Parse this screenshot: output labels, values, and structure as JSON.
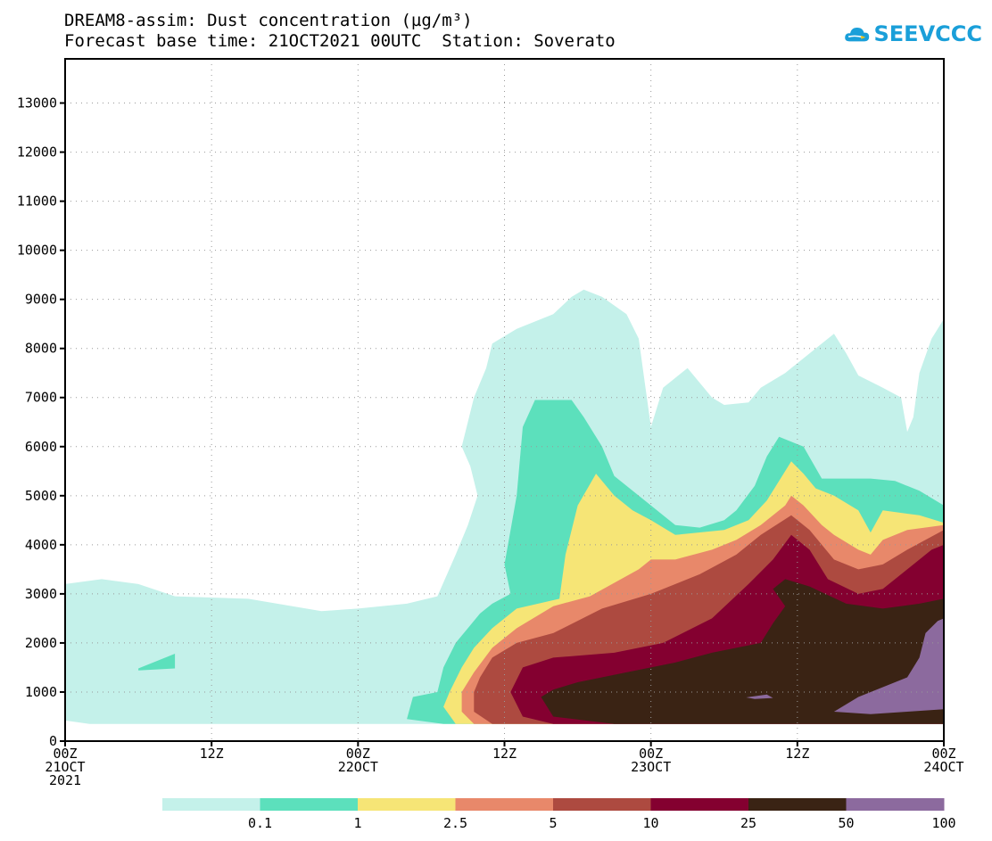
{
  "title": {
    "line1": "DREAM8-assim: Dust concentration (µg/m³)",
    "line2": "Forecast base time: 21OCT2021 00UTC  Station: Soverato"
  },
  "logo": {
    "text": "SEEVCCC",
    "icon": "cloud-icon",
    "color": "#1a9fd9"
  },
  "chart_data": {
    "type": "heatmap",
    "subtype": "filled-contour",
    "x_axis": {
      "unit": "hours since 21OCT2021 00UTC",
      "range": [
        0,
        72
      ],
      "ticks": [
        {
          "x": 0,
          "label": [
            "00Z",
            "21OCT",
            "2021"
          ]
        },
        {
          "x": 12,
          "label": [
            "12Z"
          ]
        },
        {
          "x": 24,
          "label": [
            "00Z",
            "22OCT"
          ]
        },
        {
          "x": 36,
          "label": [
            "12Z"
          ]
        },
        {
          "x": 48,
          "label": [
            "00Z",
            "23OCT"
          ]
        },
        {
          "x": 60,
          "label": [
            "12Z"
          ]
        },
        {
          "x": 72,
          "label": [
            "00Z",
            "24OCT"
          ]
        }
      ]
    },
    "y_axis": {
      "unit": "m",
      "range": [
        0,
        13900
      ],
      "ticks": [
        0,
        1000,
        2000,
        3000,
        4000,
        5000,
        6000,
        7000,
        8000,
        9000,
        10000,
        11000,
        12000,
        13000
      ]
    },
    "grid": true,
    "legend": {
      "placement": "bottom",
      "thresholds": [
        "0.1",
        "1",
        "2.5",
        "5",
        "10",
        "25",
        "50",
        "100"
      ],
      "colors": [
        "#c4f1ea",
        "#5ce0bc",
        "#f6e576",
        "#e8886a",
        "#ad4a40",
        "#840030",
        "#3a2314",
        "#8c6a9e"
      ]
    },
    "levels": [
      {
        "threshold": 0.1,
        "color": "#c4f1ea",
        "regions": [
          [
            [
              0,
              3200
            ],
            [
              3,
              3300
            ],
            [
              6,
              3200
            ],
            [
              9,
              2950
            ],
            [
              15,
              2900
            ],
            [
              21,
              2650
            ],
            [
              24,
              2700
            ],
            [
              28,
              2800
            ],
            [
              30.5,
              2950
            ],
            [
              32,
              3800
            ],
            [
              33,
              4400
            ],
            [
              33.8,
              5000
            ],
            [
              33.2,
              5600
            ],
            [
              32.5,
              6000
            ],
            [
              33.5,
              7000
            ],
            [
              34.5,
              7600
            ],
            [
              35,
              8100
            ],
            [
              37,
              8400
            ],
            [
              40,
              8700
            ],
            [
              41.5,
              9050
            ],
            [
              42.5,
              9200
            ],
            [
              44,
              9050
            ],
            [
              46,
              8700
            ],
            [
              47,
              8200
            ],
            [
              47.5,
              7300
            ],
            [
              48,
              6400
            ],
            [
              49,
              7200
            ],
            [
              51,
              7600
            ],
            [
              52,
              7300
            ],
            [
              53,
              7000
            ],
            [
              54,
              6850
            ],
            [
              56,
              6900
            ],
            [
              57,
              7200
            ],
            [
              59,
              7500
            ],
            [
              61,
              7900
            ],
            [
              63,
              8300
            ],
            [
              64,
              7900
            ],
            [
              65,
              7450
            ],
            [
              67,
              7200
            ],
            [
              68.5,
              7000
            ],
            [
              69,
              6300
            ],
            [
              69.5,
              6600
            ],
            [
              70,
              7500
            ],
            [
              71,
              8200
            ],
            [
              72,
              8600
            ],
            [
              72,
              350
            ],
            [
              67,
              350
            ],
            [
              62,
              350
            ],
            [
              56,
              350
            ],
            [
              50,
              350
            ],
            [
              45,
              350
            ],
            [
              40,
              350
            ],
            [
              35,
              350
            ],
            [
              30,
              350
            ],
            [
              25,
              350
            ],
            [
              20,
              350
            ],
            [
              15,
              350
            ],
            [
              10,
              350
            ],
            [
              5,
              350
            ],
            [
              2,
              350
            ],
            [
              0,
              420
            ]
          ]
        ]
      },
      {
        "threshold": 1,
        "color": "#5ce0bc",
        "regions": [
          [
            [
              30.5,
              1000
            ],
            [
              31,
              1500
            ],
            [
              32,
              2000
            ],
            [
              33,
              2300
            ],
            [
              34,
              2600
            ],
            [
              35,
              2800
            ],
            [
              36.5,
              3000
            ],
            [
              36,
              3600
            ],
            [
              37,
              5000
            ],
            [
              37.5,
              6400
            ],
            [
              38.5,
              6950
            ],
            [
              41.5,
              6950
            ],
            [
              42.5,
              6600
            ],
            [
              44,
              6000
            ],
            [
              45,
              5400
            ],
            [
              47,
              5000
            ],
            [
              48,
              4800
            ],
            [
              49,
              4600
            ],
            [
              50,
              4400
            ],
            [
              52,
              4350
            ],
            [
              54,
              4500
            ],
            [
              55,
              4700
            ],
            [
              56.5,
              5200
            ],
            [
              57.5,
              5800
            ],
            [
              58.5,
              6200
            ],
            [
              60.5,
              6000
            ],
            [
              62,
              5350
            ],
            [
              66,
              5350
            ],
            [
              68,
              5300
            ],
            [
              70,
              5100
            ],
            [
              72,
              4800
            ],
            [
              72,
              350
            ],
            [
              31,
              350
            ],
            [
              28,
              450
            ],
            [
              28.5,
              900
            ]
          ],
          [
            [
              6,
              1480
            ],
            [
              9,
              1780
            ],
            [
              9,
              1480
            ],
            [
              6,
              1440
            ]
          ]
        ]
      },
      {
        "threshold": 2.5,
        "color": "#f6e576",
        "regions": [
          [
            [
              31.5,
              1000
            ],
            [
              32.5,
              1500
            ],
            [
              33.5,
              1900
            ],
            [
              35,
              2300
            ],
            [
              37,
              2700
            ],
            [
              40.5,
              2900
            ],
            [
              41,
              3800
            ],
            [
              42,
              4800
            ],
            [
              43.5,
              5450
            ],
            [
              45,
              5000
            ],
            [
              46.5,
              4700
            ],
            [
              48,
              4500
            ],
            [
              50,
              4200
            ],
            [
              54,
              4300
            ],
            [
              56,
              4500
            ],
            [
              57.5,
              4900
            ],
            [
              58.5,
              5300
            ],
            [
              59.5,
              5700
            ],
            [
              60.5,
              5450
            ],
            [
              61.5,
              5150
            ],
            [
              63,
              5000
            ],
            [
              65,
              4700
            ],
            [
              66,
              4250
            ],
            [
              67,
              4700
            ],
            [
              70,
              4600
            ],
            [
              72,
              4450
            ],
            [
              72,
              350
            ],
            [
              32,
              350
            ],
            [
              31,
              700
            ]
          ]
        ]
      },
      {
        "threshold": 5,
        "color": "#e8886a",
        "regions": [
          [
            [
              32.5,
              1000
            ],
            [
              33.5,
              1400
            ],
            [
              35,
              1900
            ],
            [
              37,
              2300
            ],
            [
              40,
              2750
            ],
            [
              43,
              2950
            ],
            [
              47,
              3500
            ],
            [
              48,
              3700
            ],
            [
              50,
              3700
            ],
            [
              53,
              3900
            ],
            [
              55,
              4100
            ],
            [
              57,
              4400
            ],
            [
              59,
              4800
            ],
            [
              59.5,
              5000
            ],
            [
              60.5,
              4800
            ],
            [
              62,
              4400
            ],
            [
              63,
              4200
            ],
            [
              65,
              3900
            ],
            [
              66,
              3800
            ],
            [
              67,
              4100
            ],
            [
              69,
              4300
            ],
            [
              72,
              4400
            ],
            [
              72,
              350
            ],
            [
              33.5,
              350
            ],
            [
              32.5,
              600
            ]
          ]
        ]
      },
      {
        "threshold": 10,
        "color": "#ad4a40",
        "regions": [
          [
            [
              33.5,
              1000
            ],
            [
              34,
              1300
            ],
            [
              35,
              1700
            ],
            [
              37,
              2000
            ],
            [
              40,
              2200
            ],
            [
              44,
              2700
            ],
            [
              48,
              3000
            ],
            [
              52,
              3400
            ],
            [
              55,
              3800
            ],
            [
              57,
              4200
            ],
            [
              59.5,
              4600
            ],
            [
              61,
              4300
            ],
            [
              63,
              3700
            ],
            [
              65,
              3500
            ],
            [
              67,
              3600
            ],
            [
              69,
              3900
            ],
            [
              72,
              4300
            ],
            [
              72,
              350
            ],
            [
              35,
              350
            ],
            [
              33.5,
              600
            ]
          ]
        ]
      },
      {
        "threshold": 25,
        "color": "#840030",
        "regions": [
          [
            [
              36.5,
              1000
            ],
            [
              37.5,
              1500
            ],
            [
              40,
              1700
            ],
            [
              45,
              1800
            ],
            [
              49,
              2000
            ],
            [
              53,
              2500
            ],
            [
              56,
              3200
            ],
            [
              58,
              3700
            ],
            [
              59.5,
              4200
            ],
            [
              61,
              3900
            ],
            [
              62.5,
              3300
            ],
            [
              65,
              3000
            ],
            [
              67,
              3100
            ],
            [
              69,
              3500
            ],
            [
              71,
              3900
            ],
            [
              72,
              4000
            ],
            [
              72,
              350
            ],
            [
              40,
              350
            ],
            [
              37.5,
              500
            ]
          ]
        ]
      },
      {
        "threshold": 50,
        "color": "#3a2314",
        "regions": [
          [
            [
              39,
              900
            ],
            [
              40,
              1050
            ],
            [
              42,
              1200
            ],
            [
              46,
              1400
            ],
            [
              50,
              1600
            ],
            [
              53,
              1800
            ],
            [
              57,
              2000
            ],
            [
              58,
              2400
            ],
            [
              59,
              2750
            ],
            [
              58,
              3100
            ],
            [
              59,
              3300
            ],
            [
              61,
              3150
            ],
            [
              64,
              2800
            ],
            [
              67,
              2700
            ],
            [
              70,
              2800
            ],
            [
              72,
              2900
            ],
            [
              72,
              350
            ],
            [
              45,
              350
            ],
            [
              40,
              500
            ]
          ]
        ]
      },
      {
        "threshold": 100,
        "color": "#8c6a9e",
        "regions": [
          [
            [
              63,
              600
            ],
            [
              65,
              900
            ],
            [
              67,
              1100
            ],
            [
              69,
              1300
            ],
            [
              70,
              1700
            ],
            [
              70.5,
              2200
            ],
            [
              71.5,
              2450
            ],
            [
              72,
              2500
            ],
            [
              72,
              650
            ],
            [
              69,
              600
            ],
            [
              66,
              550
            ]
          ],
          [
            [
              55.8,
              890
            ],
            [
              57.5,
              950
            ],
            [
              58,
              880
            ],
            [
              56.5,
              860
            ]
          ]
        ]
      }
    ]
  }
}
